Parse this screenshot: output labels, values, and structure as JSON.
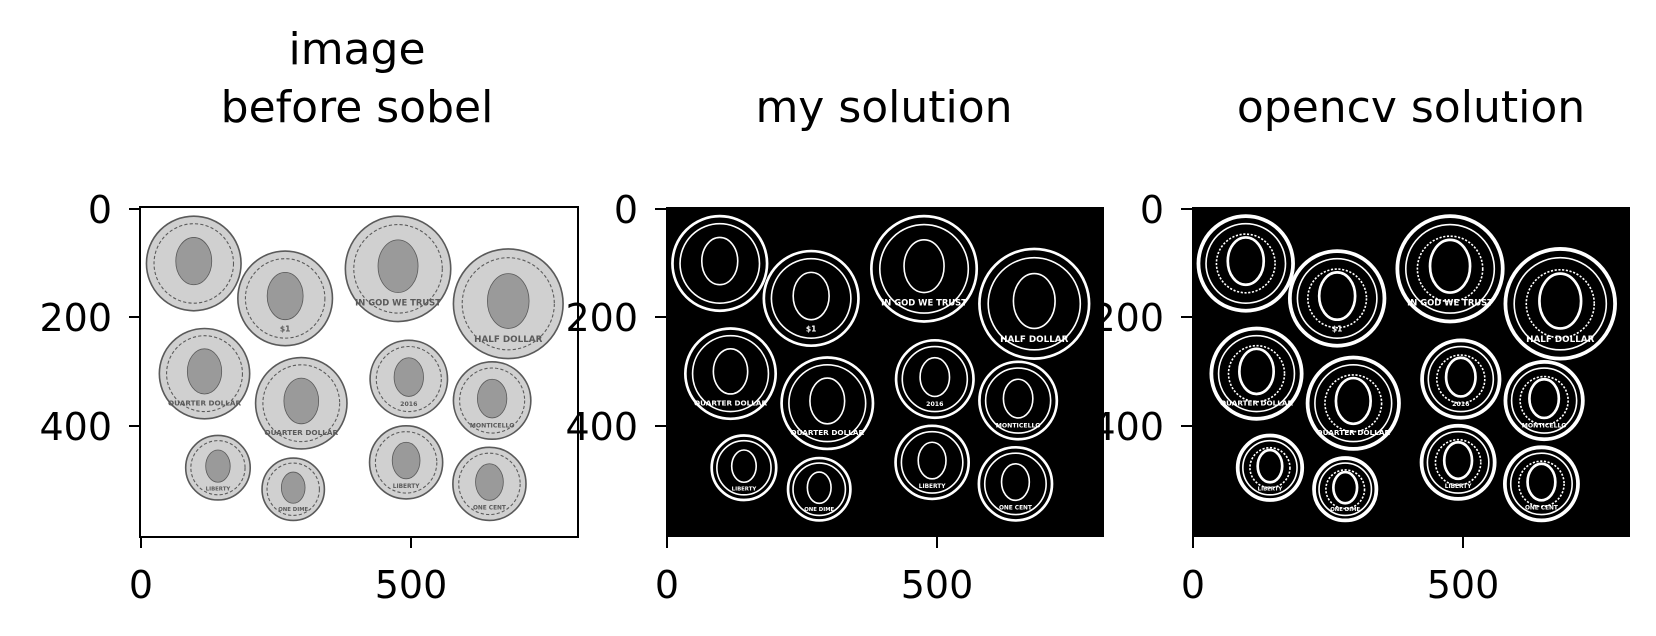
{
  "figure": {
    "panels": [
      {
        "id": "original",
        "title_lines": [
          "image",
          "before sobel"
        ],
        "x_ticks": [
          "0",
          "500"
        ],
        "y_ticks": [
          "0",
          "200",
          "400"
        ],
        "background": "#ffffff",
        "coin_fill": "#d0d0d0",
        "coin_stroke": "#5a5a5a"
      },
      {
        "id": "mine",
        "title_lines": [
          "my solution"
        ],
        "x_ticks": [
          "0",
          "500"
        ],
        "y_ticks": [
          "0",
          "200",
          "400"
        ],
        "background": "#000000",
        "coin_fill": "#000000",
        "coin_stroke": "#ffffff"
      },
      {
        "id": "opencv",
        "title_lines": [
          "opencv solution"
        ],
        "x_ticks": [
          "0",
          "500"
        ],
        "y_ticks": [
          "0",
          "200",
          "400"
        ],
        "background": "#000000",
        "coin_fill": "#000000",
        "coin_stroke": "#ffffff"
      }
    ],
    "coins": [
      {
        "name": "washington-dollar",
        "cx": 100,
        "cy": 105,
        "r": 88,
        "engraving": ""
      },
      {
        "name": "liberty-dollar",
        "cx": 270,
        "cy": 170,
        "r": 88,
        "engraving": "$1"
      },
      {
        "name": "kennedy-half",
        "cx": 480,
        "cy": 115,
        "r": 98,
        "engraving": "IN GOD WE TRUST"
      },
      {
        "name": "half-dollar-eagle",
        "cx": 685,
        "cy": 180,
        "r": 102,
        "engraving": "HALF DOLLAR"
      },
      {
        "name": "quarter-head",
        "cx": 120,
        "cy": 310,
        "r": 84,
        "engraving": "QUARTER DOLLAR"
      },
      {
        "name": "quarter-eagle",
        "cx": 300,
        "cy": 365,
        "r": 85,
        "engraving": "QUARTER DOLLAR"
      },
      {
        "name": "nickel-head",
        "cx": 500,
        "cy": 320,
        "r": 72,
        "engraving": "2016"
      },
      {
        "name": "nickel-monticello",
        "cx": 655,
        "cy": 360,
        "r": 72,
        "engraving": "MONTICELLO"
      },
      {
        "name": "dime-head",
        "cx": 145,
        "cy": 485,
        "r": 60,
        "engraving": "LIBERTY"
      },
      {
        "name": "dime-torch",
        "cx": 285,
        "cy": 525,
        "r": 58,
        "engraving": "ONE DIME"
      },
      {
        "name": "penny-head",
        "cx": 495,
        "cy": 475,
        "r": 68,
        "engraving": "LIBERTY"
      },
      {
        "name": "penny-shield",
        "cx": 650,
        "cy": 515,
        "r": 68,
        "engraving": "ONE CENT"
      }
    ]
  }
}
